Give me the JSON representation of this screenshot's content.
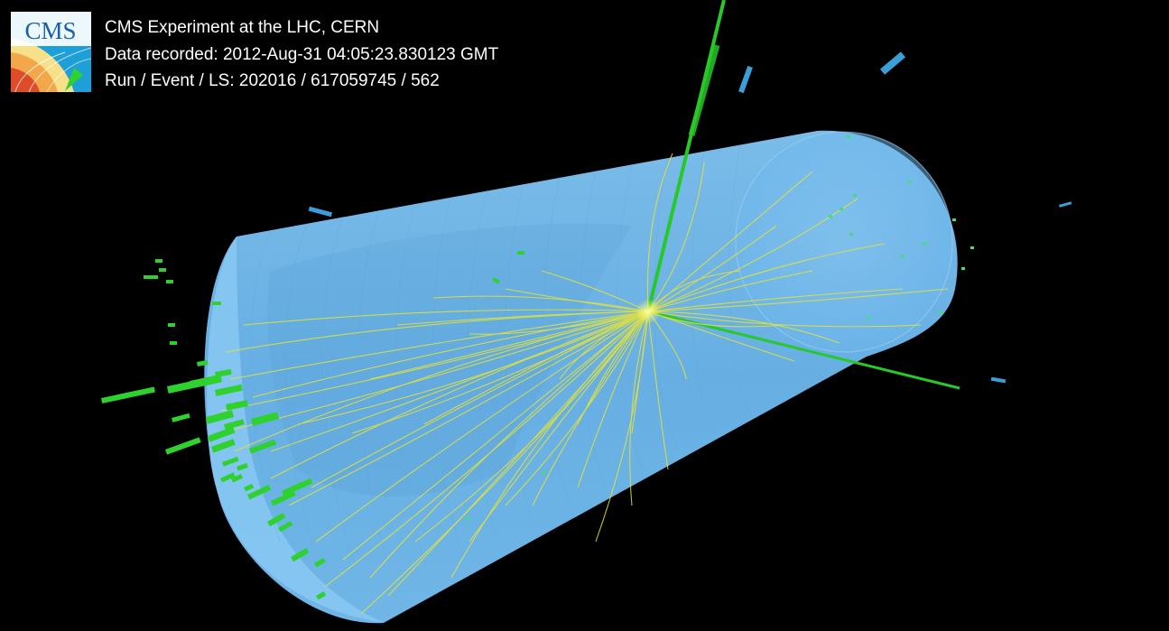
{
  "header": {
    "line1": "CMS Experiment at the LHC, CERN",
    "line2": "Data recorded: 2012-Aug-31 04:05:23.830123 GMT",
    "line3": "Run / Event / LS: 202016 / 617059745 / 562"
  },
  "logo": {
    "text": "CMS",
    "icon": "cms-logo-icon"
  },
  "colors": {
    "background": "#000000",
    "detector": "#6fbbef",
    "track": "#e4e23a",
    "energy_deposit": "#2fd12f",
    "muon_chamber": "#3a9fd8",
    "text": "#ffffff"
  }
}
